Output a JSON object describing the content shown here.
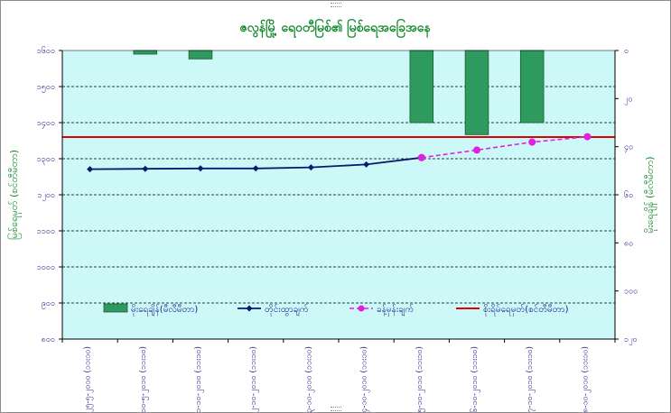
{
  "chart_data": {
    "type": "bar+line",
    "title": "ဇလွန်မြို့ ရေဝတီမြစ်၏ မြစ်ရေအခြေအနေ",
    "categories": [
      "၂၅-၅-၂၀၁၀ (၁၁း၁၀)",
      "၁၀-၅-၂၀၁၀ (၁၁း၁၀)",
      "၁-၁၀-၂၀၁၀ (၁၁း၁၀)",
      "၂-၁၀-၂၀၁၀ (၁၁း၁၀)",
      "၃-၁၀-၂၀၁၀ (၁၁း၁၀)",
      "၄-၁၀-၂၀၁၀ (၁၁း၁၀)",
      "၅-၁၀-၂၀၁၀ (၁၁း၁၀)",
      "၆-၁၀-၂၀၁၀ (၁၁း၁၀)",
      "၇-၁၀-၂၀၁၀ (၁၁း၁၀)",
      "၈-၁၀-၂၀၁၀ (၁၁း၁၀)"
    ],
    "y_left": {
      "label": "မြစ်ရေမှတ် (စင်တီမီတာ)",
      "min": 800,
      "max": 1600,
      "step": 100,
      "tick_labels": [
        "၈၀၀",
        "၉၀၀",
        "၁၀၀၀",
        "၁၁၀၀",
        "၁၂၀၀",
        "၁၃၀၀",
        "၁၄၀၀",
        "၁၅၀၀",
        "၁၆၀၀"
      ]
    },
    "y_right": {
      "label": "မိုးရေချိန် (မီလီမီတာ)",
      "min": 0,
      "max": 120,
      "step": 20,
      "reversed": true,
      "tick_labels": [
        "၀",
        "၂၀",
        "၄၀",
        "၆၀",
        "၈၀",
        "၁၀၀",
        "၁၂၀"
      ]
    },
    "series": [
      {
        "name": "မိုးရေချိန်(မီလီမီတာ)",
        "type": "bar",
        "axis": "right",
        "color": "#2e9b5e",
        "values": [
          0,
          1.5,
          3.5,
          0,
          0,
          0,
          30,
          35,
          30,
          0
        ]
      },
      {
        "name": "တိုင်းထွာချက်",
        "type": "line",
        "axis": "left",
        "color": "#0b1a6e",
        "values": [
          1271,
          1272,
          1273,
          1273,
          1276,
          1284,
          1303,
          null,
          null,
          null
        ]
      },
      {
        "name": "ခန့်မှန်းချက်",
        "type": "line-dashed",
        "axis": "left",
        "color": "#e020e0",
        "values": [
          null,
          null,
          null,
          null,
          null,
          null,
          1303,
          1324,
          1346,
          1361
        ]
      },
      {
        "name": "စိုးရိမ်ရေမှတ်(စင်တီမီတာ)",
        "type": "hline",
        "axis": "left",
        "color": "#e00000",
        "value": 1360
      }
    ],
    "grid": true,
    "legend_position": "bottom-inside",
    "plot_background": "#ccf8f8"
  }
}
